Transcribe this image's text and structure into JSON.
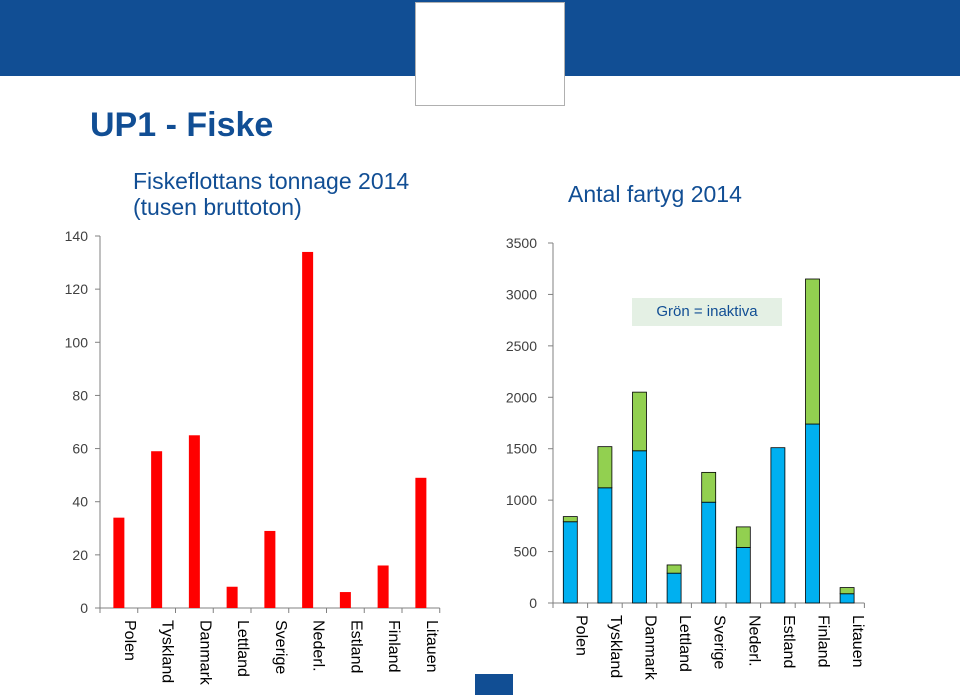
{
  "page": {
    "title": "UP1 - Fiske"
  },
  "colors": {
    "header": "#114e94",
    "red": "#ff0000",
    "blue": "#00b0f0",
    "green": "#92d050",
    "title": "#114e94"
  },
  "chart_data": [
    {
      "type": "bar",
      "title_lines": [
        "Fiskeflottans tonnage 2014",
        "(tusen bruttoton)"
      ],
      "categories": [
        "Polen",
        "Tyskland",
        "Danmark",
        "Lettland",
        "Sverige",
        "Nederl.",
        "Estland",
        "Finland",
        "Litauen"
      ],
      "values": [
        34,
        59,
        65,
        8,
        29,
        134,
        6,
        16,
        49
      ],
      "ylim": [
        0,
        140
      ],
      "yticks": [
        0,
        20,
        40,
        60,
        80,
        100,
        120,
        140
      ],
      "grid": false
    },
    {
      "type": "bar",
      "stacked": true,
      "title": "Antal fartyg 2014",
      "annotation": "Grön = inaktiva",
      "categories": [
        "Polen",
        "Tyskland",
        "Danmark",
        "Lettland",
        "Sverige",
        "Nederl.",
        "Estland",
        "Finland",
        "Litauen"
      ],
      "series": [
        {
          "values": [
            790,
            1120,
            1480,
            290,
            980,
            540,
            1510,
            1740,
            90
          ]
        },
        {
          "values": [
            50,
            400,
            570,
            80,
            290,
            200,
            0,
            1410,
            60
          ]
        }
      ],
      "ylim": [
        0,
        3500
      ],
      "yticks": [
        0,
        500,
        1000,
        1500,
        2000,
        2500,
        3000,
        3500
      ],
      "grid": false
    }
  ]
}
